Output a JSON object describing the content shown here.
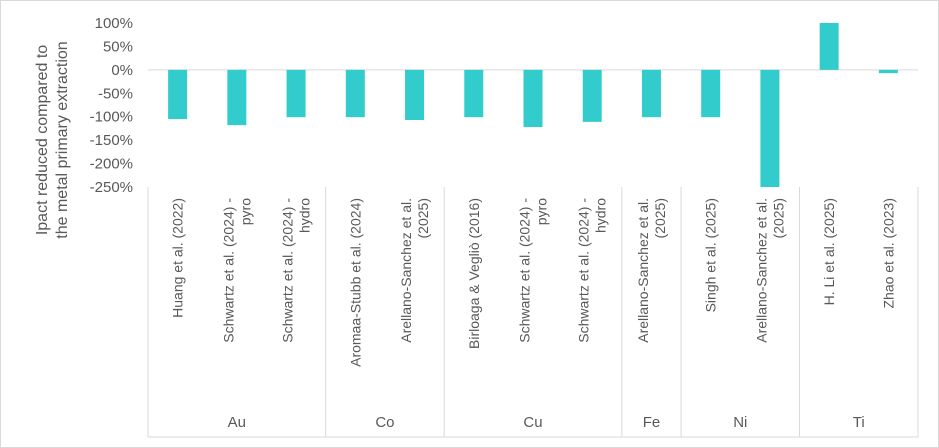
{
  "chart_data": {
    "type": "bar",
    "title": "",
    "ylabel": [
      "Ipact reduced compared to",
      "the metal primary extraction"
    ],
    "ylim": [
      -250,
      100
    ],
    "y_ticks": [
      100,
      50,
      0,
      -50,
      -100,
      -150,
      -200,
      -250
    ],
    "y_tick_labels": [
      "100%",
      "50%",
      "0%",
      "-50%",
      "-100%",
      "-150%",
      "-200%",
      "-250%"
    ],
    "grid": false,
    "legend": "none",
    "bar_color": "#33CCCC",
    "categories": [
      {
        "label": [
          "Huang et al. (2022)"
        ],
        "group": "Au",
        "value": -105
      },
      {
        "label": [
          "Schwartz et al. (2024) -",
          "pyro"
        ],
        "group": "Au",
        "value": -118
      },
      {
        "label": [
          "Schwartz et al. (2024) -",
          "hydro"
        ],
        "group": "Au",
        "value": -101
      },
      {
        "label": [
          "Aromaa-Stubb et al. (2024)"
        ],
        "group": "Co",
        "value": -101
      },
      {
        "label": [
          "Arellano-Sanchez et al.",
          "(2025)"
        ],
        "group": "Co",
        "value": -107
      },
      {
        "label": [
          "Birloaga & Vegliò (2016)"
        ],
        "group": "Cu",
        "value": -101
      },
      {
        "label": [
          "Schwartz et al. (2024) -",
          "pyro"
        ],
        "group": "Cu",
        "value": -122
      },
      {
        "label": [
          "Schwartz et al. (2024) -",
          "hydro"
        ],
        "group": "Cu",
        "value": -111
      },
      {
        "label": [
          "Arellano-Sanchez et al.",
          "(2025)"
        ],
        "group": "Fe",
        "value": -101
      },
      {
        "label": [
          "Singh et al. (2025)"
        ],
        "group": "Ni",
        "value": -101
      },
      {
        "label": [
          "Arellano-Sanchez et al.",
          "(2025)"
        ],
        "group": "Ni",
        "value": -250
      },
      {
        "label": [
          "H. Li et al. (2025)"
        ],
        "group": "Ti",
        "value": 100
      },
      {
        "label": [
          "Zhao et al. (2023)"
        ],
        "group": "Ti",
        "value": -7
      }
    ],
    "groups": [
      "Au",
      "Co",
      "Cu",
      "Fe",
      "Ni",
      "Ti"
    ]
  }
}
